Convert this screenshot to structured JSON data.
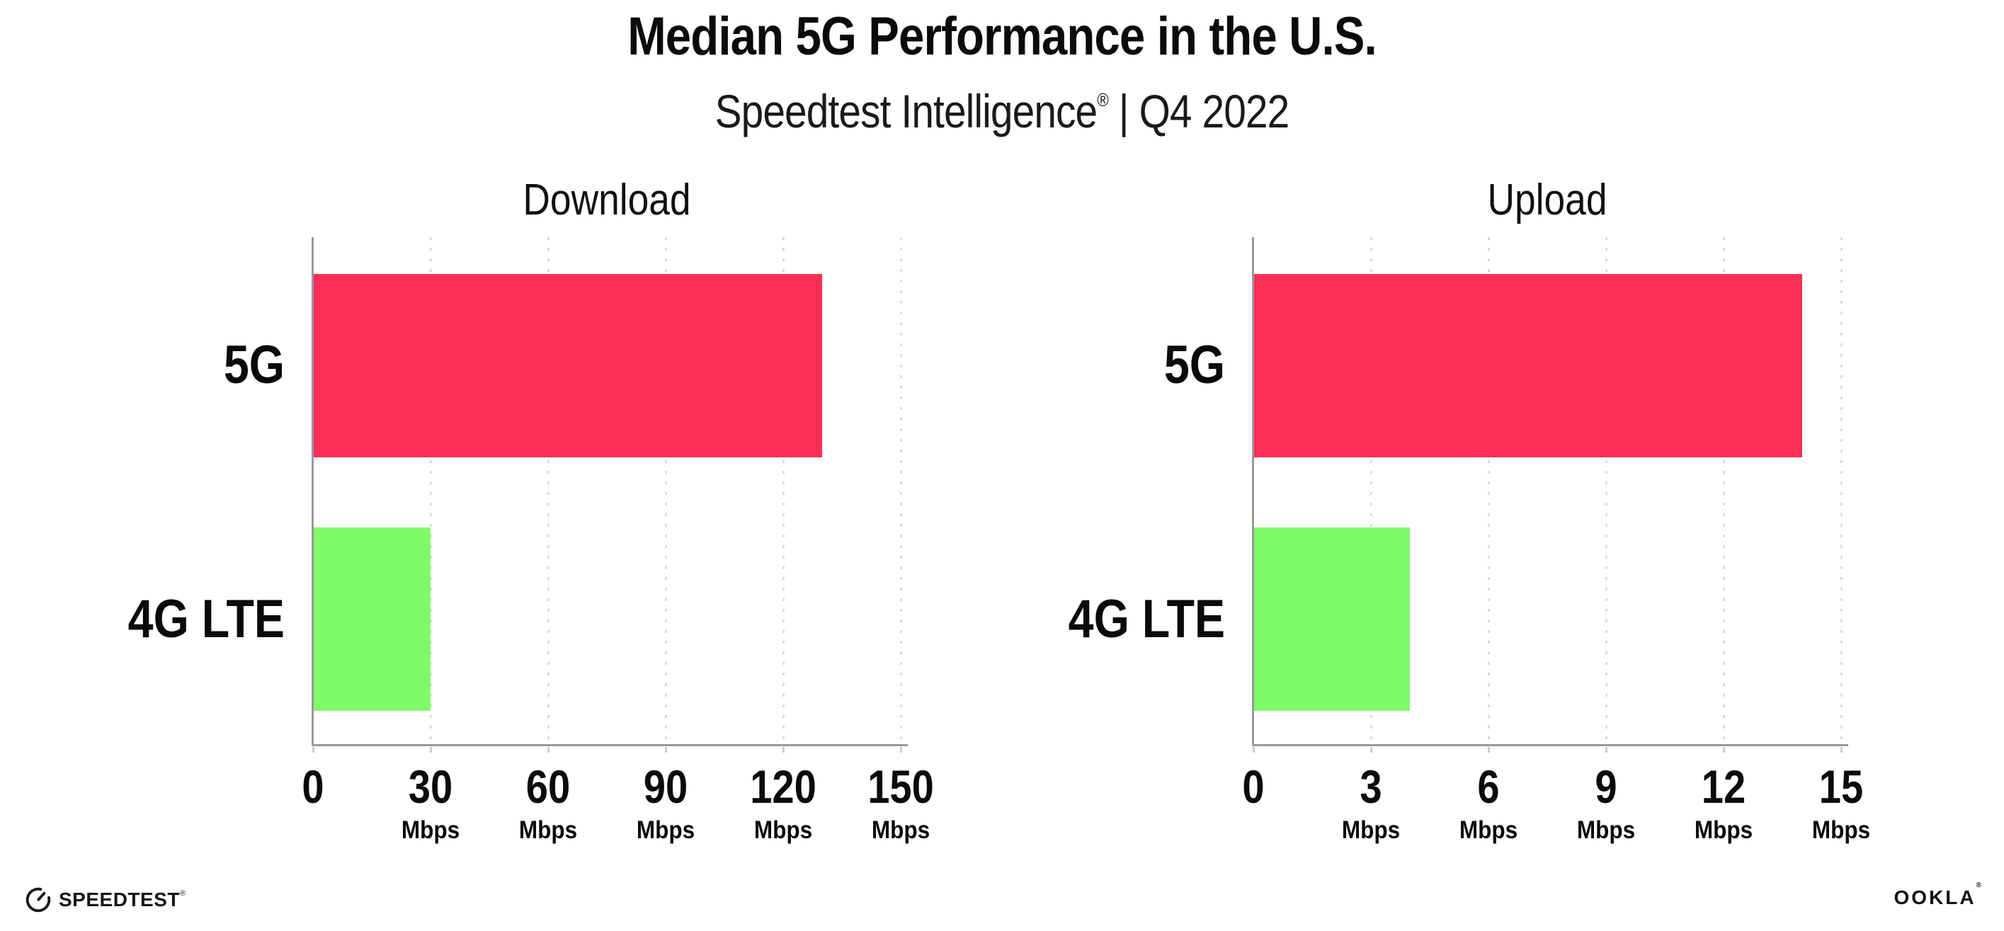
{
  "header": {
    "title": "Median 5G Performance in the U.S.",
    "subtitle_brand": "Speedtest Intelligence",
    "subtitle_trademark": "®",
    "subtitle_rest": " | Q4 2022"
  },
  "chart_data": [
    {
      "type": "bar",
      "orientation": "horizontal",
      "title": "Download",
      "categories": [
        "5G",
        "4G LTE"
      ],
      "values": [
        130,
        30
      ],
      "unit": "Mbps",
      "xlabel": "",
      "ylabel": "",
      "xlim": [
        0,
        150
      ],
      "xticks": [
        0,
        30,
        60,
        90,
        120,
        150
      ],
      "bar_colors": [
        "#ff2e56",
        "#80fa66"
      ],
      "grid": "dotted-vertical",
      "legend": "none"
    },
    {
      "type": "bar",
      "orientation": "horizontal",
      "title": "Upload",
      "categories": [
        "5G",
        "4G LTE"
      ],
      "values": [
        14,
        4
      ],
      "unit": "Mbps",
      "xlabel": "",
      "ylabel": "",
      "xlim": [
        0,
        15
      ],
      "xticks": [
        0,
        3,
        6,
        9,
        12,
        15
      ],
      "bar_colors": [
        "#ff2e56",
        "#80fa66"
      ],
      "grid": "dotted-vertical",
      "legend": "none"
    }
  ],
  "footer": {
    "speedtest_logo_text": "SPEEDTEST",
    "speedtest_trademark": "®",
    "ookla_logo_text": "OOKLA",
    "ookla_trademark": "®"
  },
  "colors": {
    "bar_5g": "#ff2e56",
    "bar_4g_lte": "#80fa66",
    "axis_line": "#98989d",
    "gridline": "#d9dae3",
    "text": "#0d0d0d"
  }
}
